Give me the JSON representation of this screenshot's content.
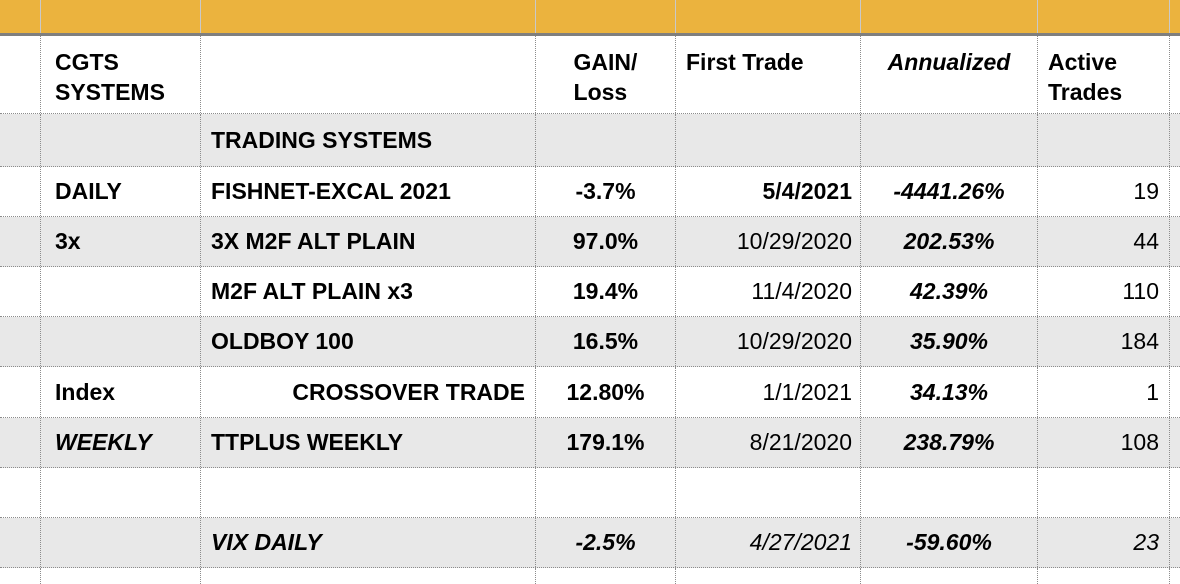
{
  "colors": {
    "band_yellow": "#EBB33E",
    "band_separator": "#C9C9C9",
    "band_bottom_border": "#7F7F7F",
    "row_stripe_gray": "#E8E8E8",
    "grid_line": "#8C8C8C",
    "text": "#000000"
  },
  "header": {
    "col_b": "CGTS\nSYSTEMS",
    "gain": "GAIN/\nLoss",
    "first_trade": "First Trade",
    "annualized": "Annualized",
    "active": "Active\nTrades"
  },
  "section": {
    "title": "TRADING SYSTEMS"
  },
  "rows": [
    {
      "label": "DAILY",
      "system": "FISHNET-EXCAL 2021",
      "gain": "-3.7%",
      "first_trade": "5/4/2021",
      "annualized": "-4441.26%",
      "active_trades": "19"
    },
    {
      "label": "3x",
      "system": "3X M2F ALT PLAIN",
      "gain": "97.0%",
      "first_trade": "10/29/2020",
      "annualized": "202.53%",
      "active_trades": "44"
    },
    {
      "label": "",
      "system": "M2F ALT PLAIN x3",
      "gain": "19.4%",
      "first_trade": "11/4/2020",
      "annualized": "42.39%",
      "active_trades": "110"
    },
    {
      "label": "",
      "system": "OLDBOY 100",
      "gain": "16.5%",
      "first_trade": "10/29/2020",
      "annualized": "35.90%",
      "active_trades": "184"
    },
    {
      "label": "Index",
      "system": "CROSSOVER TRADE",
      "gain": "12.80%",
      "first_trade": "1/1/2021",
      "annualized": "34.13%",
      "active_trades": "1"
    },
    {
      "label": "WEEKLY",
      "system": "TTPLUS WEEKLY",
      "gain": "179.1%",
      "first_trade": "8/21/2020",
      "annualized": "238.79%",
      "active_trades": "108"
    },
    {
      "label": "",
      "system": "VIX DAILY",
      "gain": "-2.5%",
      "first_trade": "4/27/2021",
      "annualized": "-59.60%",
      "active_trades": "23"
    }
  ]
}
